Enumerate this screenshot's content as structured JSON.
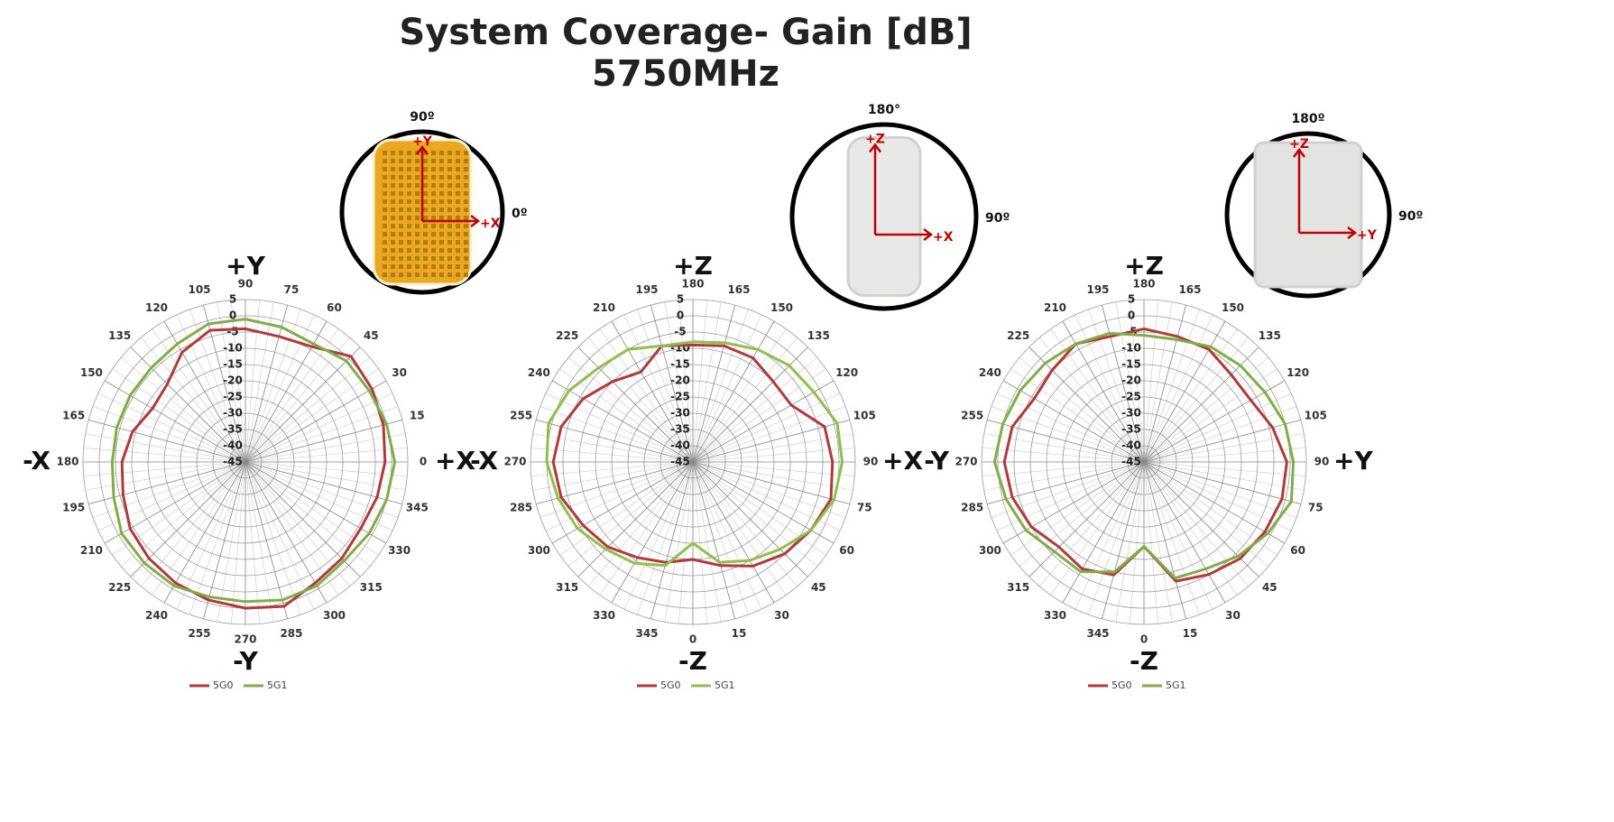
{
  "title": [
    "System Coverage- Gain [dB]",
    "5750MHz"
  ],
  "chart_data": [
    {
      "type": "polar",
      "theta_zero": "E",
      "direction": "counterclockwise",
      "axis_labels": {
        "top": "+Y",
        "bottom": "-Y",
        "left": "-X",
        "right": "+X"
      },
      "rlim": [
        -45,
        5
      ],
      "rticks": [
        5,
        0,
        -5,
        -10,
        -15,
        -20,
        -25,
        -30,
        -35,
        -40,
        -45
      ],
      "theta": [
        0,
        15,
        30,
        45,
        60,
        75,
        90,
        105,
        120,
        135,
        150,
        165,
        180,
        195,
        210,
        225,
        240,
        255,
        270,
        285,
        300,
        315,
        330,
        345
      ],
      "series": [
        {
          "name": "5G0",
          "color": "#b03a3a",
          "values": [
            -2,
            -1,
            0,
            1,
            -4,
            -5,
            -4,
            -3,
            -6,
            -11,
            -12,
            -9,
            -7,
            -6,
            -4,
            -3,
            -2,
            -1,
            0,
            1,
            -2,
            -3,
            -4,
            -3
          ]
        },
        {
          "name": "5G1",
          "color": "#7fae48",
          "values": [
            1,
            0,
            -1,
            -1,
            -3,
            -2,
            -1,
            -1,
            -3,
            -4,
            -4,
            -4,
            -4,
            -3,
            -1,
            -1,
            -1,
            -2,
            -2,
            -1,
            -1,
            -2,
            -1,
            0
          ]
        }
      ]
    },
    {
      "type": "polar",
      "theta_zero": "S",
      "direction": "counterclockwise",
      "axis_labels": {
        "top": "+Z",
        "bottom": "-Z",
        "left": "-X",
        "right": "+X"
      },
      "rlim": [
        -45,
        5
      ],
      "rticks": [
        5,
        0,
        -5,
        -10,
        -15,
        -20,
        -25,
        -30,
        -35,
        -40,
        -45
      ],
      "theta": [
        0,
        15,
        30,
        45,
        60,
        75,
        90,
        105,
        120,
        135,
        150,
        165,
        180,
        195,
        210,
        225,
        240,
        255,
        270,
        285,
        300,
        315,
        330,
        345
      ],
      "series": [
        {
          "name": "5G0",
          "color": "#b03a3a",
          "values": [
            -15,
            -12,
            -8,
            -5,
            -3,
            -1,
            -2,
            -3,
            -10,
            -10,
            -8,
            -8,
            -9,
            -8,
            -13,
            -10,
            -6,
            -3,
            -2,
            -3,
            -6,
            -8,
            -11,
            -13
          ]
        },
        {
          "name": "5G1",
          "color": "#8fbf4f",
          "values": [
            -20,
            -13,
            -10,
            -7,
            -3,
            0,
            1,
            1,
            -2,
            -3,
            -5,
            -7,
            -8,
            -8,
            -5,
            -4,
            -1,
            1,
            0,
            -2,
            -4,
            -7,
            -9,
            -12
          ]
        }
      ]
    },
    {
      "type": "polar",
      "theta_zero": "S",
      "direction": "counterclockwise",
      "axis_labels": {
        "top": "+Z",
        "bottom": "-Z",
        "left": "-Y",
        "right": "+Y"
      },
      "rlim": [
        -45,
        5
      ],
      "rticks": [
        5,
        0,
        -5,
        -10,
        -15,
        -20,
        -25,
        -30,
        -35,
        -40,
        -45
      ],
      "theta": [
        0,
        15,
        30,
        45,
        60,
        75,
        90,
        105,
        120,
        135,
        150,
        165,
        180,
        195,
        210,
        225,
        240,
        255,
        270,
        285,
        300,
        315,
        330,
        345
      ],
      "series": [
        {
          "name": "5G0",
          "color": "#b03a3a",
          "values": [
            -19,
            -7,
            -5,
            -3,
            -2,
            -1,
            -1,
            -4,
            -7,
            -7,
            -5,
            -5,
            -4,
            -5,
            -3,
            -5,
            -6,
            -3,
            -2,
            -3,
            -5,
            -8,
            -7,
            -9
          ]
        },
        {
          "name": "5G1",
          "color": "#7fae48",
          "values": [
            -19,
            -8,
            -7,
            -4,
            -1,
            2,
            1,
            0,
            -2,
            -3,
            -4,
            -6,
            -6,
            -4,
            -3,
            -2,
            -1,
            0,
            1,
            -1,
            -3,
            -6,
            -6,
            -10
          ]
        }
      ]
    }
  ],
  "insets": [
    {
      "top": "90º",
      "right": "0º",
      "up_arrow": "+Y",
      "right_arrow": "+X"
    },
    {
      "top": "180°",
      "right": "90º",
      "up_arrow": "+Z",
      "right_arrow": "+X"
    },
    {
      "top": "180º",
      "right": "90º",
      "up_arrow": "+Z",
      "right_arrow": "+Y"
    }
  ]
}
